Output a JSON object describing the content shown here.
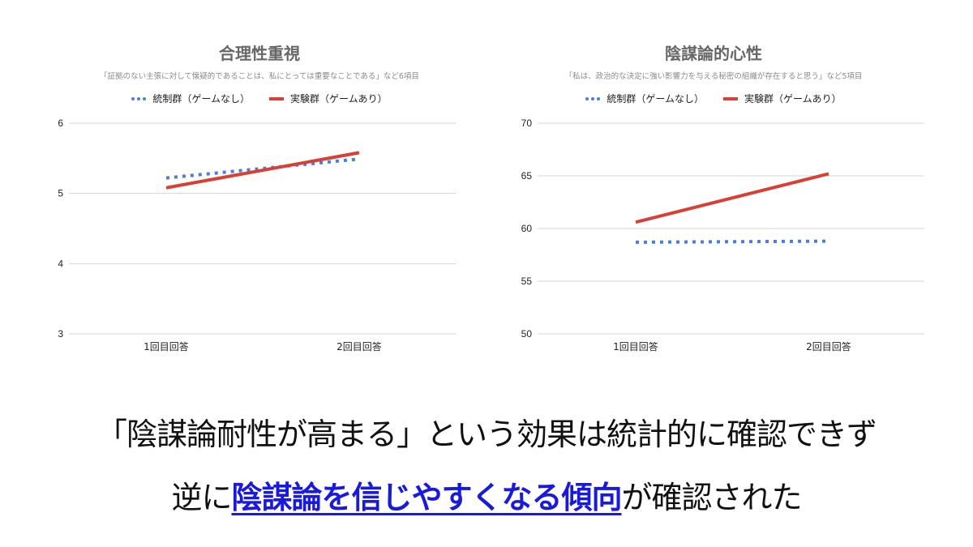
{
  "chart_data": [
    {
      "type": "line",
      "title": "合理性重視",
      "subtitle": "「証拠のない主張に対して懐疑的であることは、私にとっては重要なことである」など6項目",
      "categories": [
        "1回目回答",
        "2回目回答"
      ],
      "series": [
        {
          "name": "統制群（ゲームなし）",
          "style": "dotted",
          "color": "#4a7fd4",
          "values": [
            5.22,
            5.49
          ]
        },
        {
          "name": "実験群（ゲームあり）",
          "style": "solid",
          "color": "#d94035",
          "values": [
            5.08,
            5.58
          ]
        }
      ],
      "yticks": [
        "3",
        "4",
        "5",
        "6"
      ],
      "ylim": [
        3,
        6
      ],
      "grid": true,
      "legend_position": "top"
    },
    {
      "type": "line",
      "title": "陰謀論的心性",
      "subtitle": "「私は、政治的な決定に強い影響力を与える秘密の組織が存在すると思う」など5項目",
      "categories": [
        "1回目回答",
        "2回目回答"
      ],
      "series": [
        {
          "name": "統制群（ゲームなし）",
          "style": "dotted",
          "color": "#4a7fd4",
          "values": [
            58.7,
            58.8
          ]
        },
        {
          "name": "実験群（ゲームあり）",
          "style": "solid",
          "color": "#d94035",
          "values": [
            60.6,
            65.2
          ]
        }
      ],
      "yticks": [
        "50",
        "55",
        "60",
        "65",
        "70"
      ],
      "ylim": [
        50,
        70
      ],
      "grid": true,
      "legend_position": "top"
    }
  ],
  "left": {
    "title": "合理性重視",
    "subtitle": "「証拠のない主張に対して懐疑的であることは、私にとっては重要なことである」など6項目",
    "legend": [
      "統制群（ゲームなし）",
      "実験群（ゲームあり）"
    ],
    "yticks": [
      "6",
      "5",
      "4",
      "3"
    ],
    "xticks": [
      "1回目回答",
      "2回目回答"
    ]
  },
  "right": {
    "title": "陰謀論的心性",
    "subtitle": "「私は、政治的な決定に強い影響力を与える秘密の組織が存在すると思う」など5項目",
    "legend": [
      "統制群（ゲームなし）",
      "実験群（ゲームあり）"
    ],
    "yticks": [
      "70",
      "65",
      "60",
      "55",
      "50"
    ],
    "xticks": [
      "1回目回答",
      "2回目回答"
    ]
  },
  "caption": {
    "line1": "「陰謀論耐性が高まる」という効果は統計的に確認できず",
    "line2_pre": "逆に",
    "line2_highlight": "陰謀論を信じやすくなる傾向",
    "line2_post": "が確認された",
    "highlight_color": "#1a1adb"
  }
}
